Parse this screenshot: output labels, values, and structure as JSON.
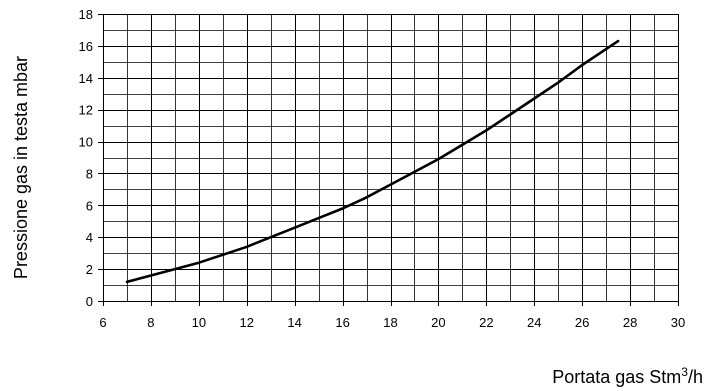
{
  "chart_data": {
    "type": "line",
    "title": "",
    "xlabel": "Portata gas Stm",
    "xlabel_sup": "3",
    "xlabel_suffix": "/h",
    "ylabel": "Pressione gas in testa mbar",
    "xlim": [
      6,
      30
    ],
    "ylim": [
      0,
      18
    ],
    "x_major_step": 2,
    "x_minor_step": 1,
    "y_major_step": 2,
    "y_minor_step": 1,
    "grid": true,
    "legend": "none",
    "x_ticks": [
      "6",
      "8",
      "10",
      "12",
      "14",
      "16",
      "18",
      "20",
      "22",
      "24",
      "26",
      "28",
      "30"
    ],
    "y_ticks": [
      "0",
      "2",
      "4",
      "6",
      "8",
      "10",
      "12",
      "14",
      "16",
      "18"
    ],
    "series_color": "#000000",
    "series": [
      {
        "x": [
          7,
          8,
          9,
          10,
          11,
          12,
          13,
          14,
          15,
          16,
          17,
          18,
          19,
          20,
          21,
          22,
          23,
          24,
          25,
          26,
          27,
          27.5
        ],
        "y": [
          1.2,
          1.6,
          2.0,
          2.4,
          2.9,
          3.4,
          4.0,
          4.6,
          5.2,
          5.8,
          6.5,
          7.3,
          8.1,
          8.9,
          9.8,
          10.7,
          11.7,
          12.7,
          13.7,
          14.8,
          15.8,
          16.3
        ]
      }
    ]
  }
}
